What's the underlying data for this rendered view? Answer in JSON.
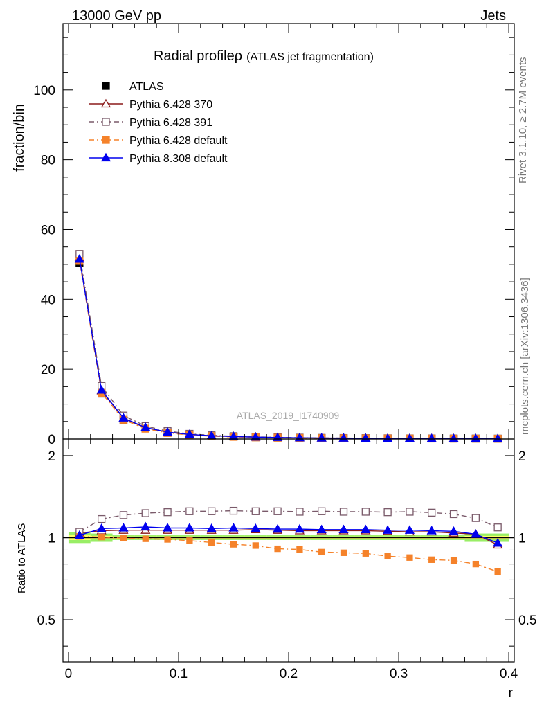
{
  "header": {
    "energy_label": "13000 GeV pp",
    "process_label": "Jets"
  },
  "side_labels": {
    "rivet": "Rivet 3.1.10, ≥ 2.7M events",
    "mcplots": "mcplots.cern.ch [arXiv:1306.3436]"
  },
  "watermark": "ATLAS_2019_I1740909",
  "chart_data": {
    "type": "line",
    "title": "Radial profileρ",
    "subtitle": "(ATLAS jet fragmentation)",
    "xlabel": "r",
    "ylabel": "fraction/bin",
    "ratio_ylabel": "Ratio to ATLAS",
    "xlim": [
      -0.005,
      0.405
    ],
    "ylim": [
      0,
      119
    ],
    "ratio_ylim": [
      0.35,
      2.3
    ],
    "x_ticks": [
      "0",
      "0.1",
      "0.2",
      "0.3",
      "0.4"
    ],
    "y_ticks": [
      "0",
      "20",
      "40",
      "60",
      "80",
      "100"
    ],
    "ratio_ticks": [
      "0.5",
      "1",
      "2"
    ],
    "legend_position": "top-left",
    "x": [
      0.01,
      0.03,
      0.05,
      0.07,
      0.09,
      0.11,
      0.13,
      0.15,
      0.17,
      0.19,
      0.21,
      0.23,
      0.25,
      0.27,
      0.29,
      0.31,
      0.33,
      0.35,
      0.37,
      0.39
    ],
    "series": [
      {
        "name": "ATLAS",
        "color": "#000000",
        "marker": "filled-square",
        "line": "none",
        "values": [
          50.4,
          13.0,
          5.5,
          3.0,
          1.8,
          1.2,
          0.85,
          0.65,
          0.5,
          0.4,
          0.32,
          0.27,
          0.23,
          0.2,
          0.17,
          0.15,
          0.13,
          0.11,
          0.1,
          0.09
        ],
        "ratio": [
          1,
          1,
          1,
          1,
          1,
          1,
          1,
          1,
          1,
          1,
          1,
          1,
          1,
          1,
          1,
          1,
          1,
          1,
          1,
          1
        ]
      },
      {
        "name": "Pythia 6.428 370",
        "color": "#8b1a1a",
        "marker": "open-triangle",
        "line": "solid",
        "values": [
          52.0,
          13.8,
          5.9,
          3.2,
          1.95,
          1.29,
          0.92,
          0.7,
          0.54,
          0.43,
          0.34,
          0.29,
          0.25,
          0.21,
          0.18,
          0.16,
          0.14,
          0.12,
          0.1,
          0.09
        ],
        "ratio": [
          1.04,
          1.06,
          1.065,
          1.065,
          1.065,
          1.065,
          1.065,
          1.065,
          1.07,
          1.065,
          1.06,
          1.06,
          1.06,
          1.06,
          1.055,
          1.05,
          1.05,
          1.04,
          1.03,
          0.94
        ]
      },
      {
        "name": "Pythia 6.428 391",
        "color": "#7a5a6a",
        "marker": "open-square",
        "line": "dashdot",
        "values": [
          53.0,
          15.2,
          6.7,
          3.7,
          2.25,
          1.48,
          1.05,
          0.8,
          0.62,
          0.49,
          0.39,
          0.33,
          0.28,
          0.24,
          0.21,
          0.18,
          0.16,
          0.14,
          0.12,
          0.1
        ],
        "ratio": [
          1.05,
          1.17,
          1.21,
          1.23,
          1.24,
          1.25,
          1.25,
          1.255,
          1.25,
          1.25,
          1.245,
          1.25,
          1.245,
          1.245,
          1.24,
          1.245,
          1.235,
          1.22,
          1.18,
          1.09
        ]
      },
      {
        "name": "Pythia 6.428 default",
        "color": "#f5822a",
        "marker": "filled-square",
        "line": "dashdot",
        "values": [
          51.0,
          13.2,
          5.5,
          2.95,
          1.75,
          1.15,
          0.8,
          0.6,
          0.46,
          0.37,
          0.29,
          0.24,
          0.21,
          0.18,
          0.15,
          0.13,
          0.11,
          0.095,
          0.085,
          0.07
        ],
        "ratio": [
          1.01,
          1.005,
          0.995,
          0.99,
          0.985,
          0.975,
          0.96,
          0.945,
          0.935,
          0.91,
          0.905,
          0.885,
          0.88,
          0.875,
          0.855,
          0.845,
          0.83,
          0.825,
          0.8,
          0.75
        ]
      },
      {
        "name": "Pythia 8.308 default",
        "color": "#0000ee",
        "marker": "filled-triangle",
        "line": "solid",
        "values": [
          51.5,
          14.0,
          6.0,
          3.3,
          1.97,
          1.31,
          0.93,
          0.71,
          0.55,
          0.44,
          0.35,
          0.29,
          0.25,
          0.22,
          0.18,
          0.16,
          0.14,
          0.12,
          0.1,
          0.09
        ],
        "ratio": [
          1.02,
          1.08,
          1.085,
          1.095,
          1.085,
          1.085,
          1.08,
          1.085,
          1.08,
          1.075,
          1.075,
          1.07,
          1.07,
          1.07,
          1.065,
          1.065,
          1.06,
          1.055,
          1.03,
          0.955
        ]
      }
    ],
    "uncertainty_band": {
      "inner_color": "#ffff66",
      "outer_color": "#99ee66",
      "inner_half_width": [
        0.02,
        0.015,
        0.01,
        0.01,
        0.01,
        0.01,
        0.01,
        0.01,
        0.01,
        0.01,
        0.01,
        0.01,
        0.01,
        0.01,
        0.01,
        0.01,
        0.01,
        0.01,
        0.015,
        0.015
      ],
      "outer_half_width": [
        0.045,
        0.035,
        0.02,
        0.02,
        0.02,
        0.02,
        0.02,
        0.02,
        0.02,
        0.02,
        0.02,
        0.02,
        0.02,
        0.02,
        0.02,
        0.02,
        0.02,
        0.02,
        0.035,
        0.035
      ]
    }
  }
}
